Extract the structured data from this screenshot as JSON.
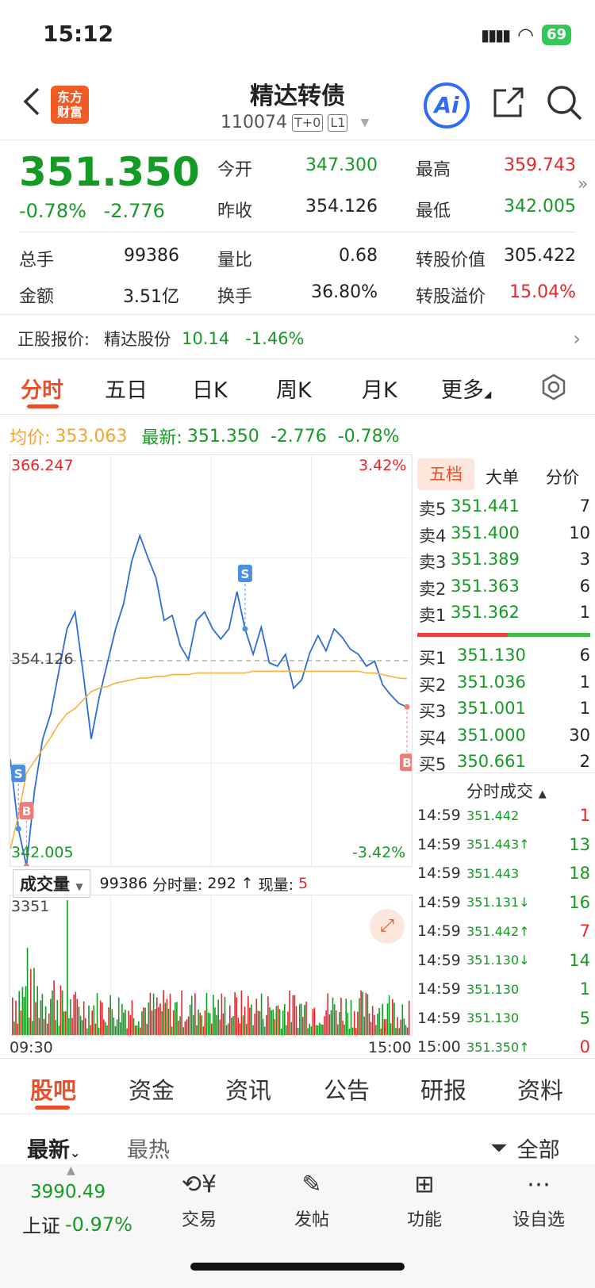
{
  "status_bar": {
    "time": "15:12",
    "battery": "69"
  },
  "header": {
    "title": "精达转债",
    "code": "110074",
    "tags": [
      "T+0",
      "L1"
    ],
    "logo": "东方财富",
    "ai_label": "Ai"
  },
  "quote": {
    "price": "351.350",
    "change_pct": "-0.78%",
    "change": "-2.776",
    "open_label": "今开",
    "open": "347.300",
    "high_label": "最高",
    "high": "359.743",
    "prev_label": "昨收",
    "prev": "354.126",
    "low_label": "最低",
    "low": "342.005",
    "vol_label": "总手",
    "vol": "99386",
    "ratio_label": "量比",
    "ratio": "0.68",
    "conv_val_label": "转股价值",
    "conv_val": "305.422",
    "amount_label": "金额",
    "amount": "3.51亿",
    "turnover_label": "换手",
    "turnover": "36.80%",
    "premium_label": "转股溢价",
    "premium": "15.04%"
  },
  "underlying": {
    "label": "正股报价:",
    "name": "精达股份",
    "price": "10.14",
    "change": "-1.46%"
  },
  "chart_tabs": [
    "分时",
    "五日",
    "日K",
    "周K",
    "月K",
    "更多"
  ],
  "legend": {
    "avg_label": "均价:",
    "avg": "353.063",
    "last_label": "最新:",
    "last": "351.350",
    "chg": "-2.776",
    "pct": "-0.78%"
  },
  "chart_labels": {
    "top_left": "366.247",
    "top_right": "3.42%",
    "mid": "354.126",
    "bottom_left": "342.005",
    "bottom_right": "-3.42%"
  },
  "chart_data": {
    "type": "line",
    "x_start": "09:30",
    "x_end": "15:00",
    "ylim": [
      342.005,
      366.247
    ],
    "reference": 354.126,
    "series": [
      {
        "values": [
          348.3,
          344.2,
          342.0,
          346.5,
          349.5,
          351.0,
          353.5,
          356.0,
          357.0,
          353.4,
          349.5,
          352.0,
          354.0,
          356.0,
          357.5,
          360.0,
          361.5,
          360.2,
          359.0,
          356.5,
          356.8,
          355.0,
          354.2,
          356.5,
          357.0,
          356.0,
          355.4,
          356.0,
          358.2,
          356.0,
          354.5,
          356.1,
          354.0,
          353.8,
          354.5,
          352.5,
          353.0,
          354.6,
          355.6,
          354.7,
          356.0,
          355.5,
          354.8,
          354.5,
          353.8,
          354.1,
          352.7,
          352.1,
          351.6,
          351.4
        ]
      },
      {
        "values": [
          343.0,
          345.0,
          347.5,
          348.2,
          348.9,
          349.6,
          350.4,
          351.0,
          351.3,
          351.8,
          352.3,
          352.5,
          352.6,
          352.8,
          352.9,
          353.0,
          353.1,
          353.1,
          353.2,
          353.2,
          353.3,
          353.3,
          353.3,
          353.4,
          353.4,
          353.4,
          353.4,
          353.4,
          353.4,
          353.4,
          353.5,
          353.5,
          353.5,
          353.5,
          353.5,
          353.5,
          353.5,
          353.5,
          353.5,
          353.5,
          353.5,
          353.5,
          353.5,
          353.5,
          353.4,
          353.4,
          353.3,
          353.2,
          353.1,
          353.06
        ]
      }
    ],
    "markers": [
      "B",
      "S",
      "S",
      "B"
    ]
  },
  "volume": {
    "selector": "成交量",
    "total": "99386",
    "minute_label": "分时量:",
    "minute": "292",
    "now_label": "现量:",
    "now": "5",
    "max": "3351",
    "start": "09:30",
    "end": "15:00"
  },
  "book_tabs": [
    "五档",
    "大单",
    "分价"
  ],
  "asks": [
    {
      "label": "卖5",
      "price": "351.441",
      "qty": "7"
    },
    {
      "label": "卖4",
      "price": "351.400",
      "qty": "10"
    },
    {
      "label": "卖3",
      "price": "351.389",
      "qty": "3"
    },
    {
      "label": "卖2",
      "price": "351.363",
      "qty": "6"
    },
    {
      "label": "卖1",
      "price": "351.362",
      "qty": "1"
    }
  ],
  "bids": [
    {
      "label": "买1",
      "price": "351.130",
      "qty": "6"
    },
    {
      "label": "买2",
      "price": "351.036",
      "qty": "1"
    },
    {
      "label": "买3",
      "price": "351.001",
      "qty": "1"
    },
    {
      "label": "买4",
      "price": "351.000",
      "qty": "30"
    },
    {
      "label": "买5",
      "price": "350.661",
      "qty": "2"
    }
  ],
  "trades_title": "分时成交",
  "trades": [
    {
      "time": "14:59",
      "price": "351.442",
      "arrow": "",
      "qty": "1",
      "color": "#e8252b"
    },
    {
      "time": "14:59",
      "price": "351.443↑",
      "arrow": "",
      "qty": "13",
      "color": "#159a25"
    },
    {
      "time": "14:59",
      "price": "351.443",
      "arrow": "",
      "qty": "18",
      "color": "#159a25"
    },
    {
      "time": "14:59",
      "price": "351.131↓",
      "arrow": "",
      "qty": "16",
      "color": "#159a25"
    },
    {
      "time": "14:59",
      "price": "351.442↑",
      "arrow": "",
      "qty": "7",
      "color": "#e8252b"
    },
    {
      "time": "14:59",
      "price": "351.130↓",
      "arrow": "",
      "qty": "14",
      "color": "#159a25"
    },
    {
      "time": "14:59",
      "price": "351.130",
      "arrow": "",
      "qty": "1",
      "color": "#159a25"
    },
    {
      "time": "14:59",
      "price": "351.130",
      "arrow": "",
      "qty": "5",
      "color": "#159a25"
    },
    {
      "time": "15:00",
      "price": "351.350↑",
      "arrow": "",
      "qty": "0",
      "color": "#e8252b"
    }
  ],
  "content_tabs": [
    "股吧",
    "资金",
    "资讯",
    "公告",
    "研报",
    "资料"
  ],
  "filter": {
    "latest": "最新",
    "hot": "最热",
    "all": "全部"
  },
  "bottom_nav": {
    "index_value": "3990.49",
    "index_name": "上证",
    "index_change": "-0.97%",
    "items": [
      "交易",
      "发帖",
      "功能",
      "设自选"
    ]
  }
}
